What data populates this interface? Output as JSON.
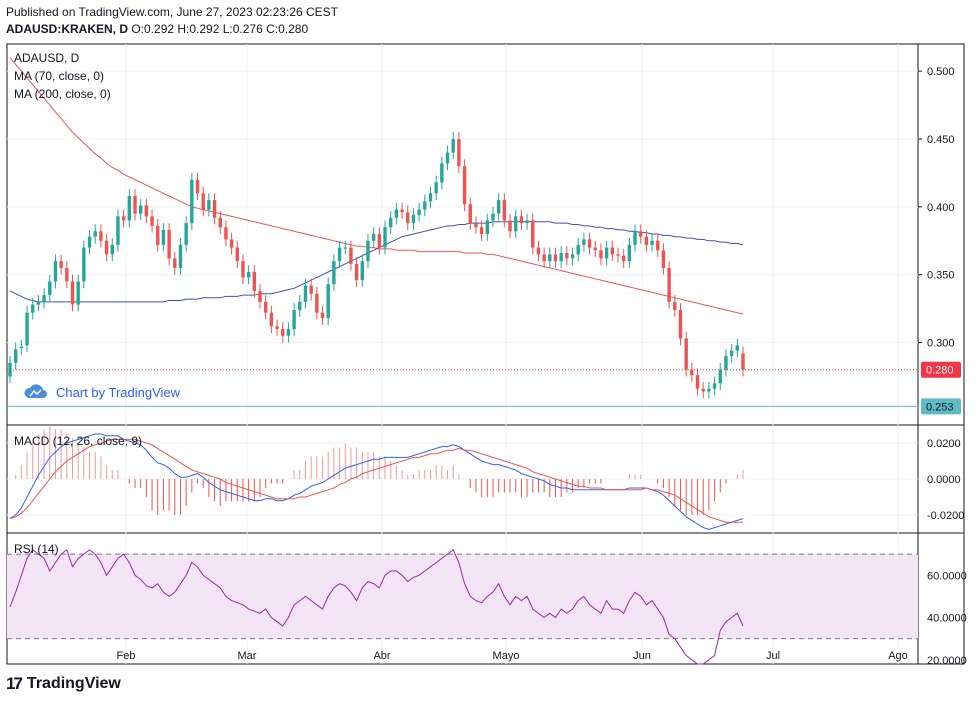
{
  "header": {
    "published": "Published on TradingView.com, June 27, 2023 02:23:26 CEST",
    "symbol": "ADAUSD:KRAKEN, D",
    "ohlc": "O:0.292 H:0.292 L:0.276 C:0.280"
  },
  "legends": {
    "main_title": "ADAUSD, D",
    "ma70": "MA (70, close, 0)",
    "ma200": "MA (200, close, 0)",
    "macd": "MACD (12, 26, close, 9)",
    "rsi": "RSI (14)"
  },
  "watermark": "Chart by TradingView",
  "footer": {
    "brand": "TradingView",
    "mark": "17"
  },
  "colors": {
    "up": "#26a69a",
    "down": "#ef5350",
    "ma70": "#ef5350",
    "ma200": "#3f51b5",
    "macd": "#2962ff",
    "signal": "#ef5350",
    "rsi": "#9c27b0",
    "rsi_band": "#f3e5f5",
    "current_price": "#f23645",
    "low_line": "#5dbbc4"
  },
  "chart_data": {
    "type": "candlestick",
    "x_tick_labels": [
      "Feb",
      "Mar",
      "Abr",
      "Mayo",
      "Jun",
      "Jul",
      "Ago"
    ],
    "price_axis": {
      "ticks": [
        "0.500",
        "0.450",
        "0.400",
        "0.350",
        "0.300"
      ],
      "ylim": [
        0.24,
        0.52
      ]
    },
    "current_price": "0.280",
    "low_price": "0.253",
    "candles_close": [
      0.285,
      0.295,
      0.297,
      0.322,
      0.328,
      0.33,
      0.335,
      0.345,
      0.36,
      0.355,
      0.345,
      0.328,
      0.345,
      0.37,
      0.378,
      0.382,
      0.375,
      0.365,
      0.372,
      0.393,
      0.39,
      0.408,
      0.395,
      0.401,
      0.393,
      0.386,
      0.372,
      0.383,
      0.362,
      0.355,
      0.372,
      0.388,
      0.42,
      0.41,
      0.398,
      0.405,
      0.392,
      0.385,
      0.376,
      0.37,
      0.36,
      0.348,
      0.352,
      0.338,
      0.33,
      0.322,
      0.312,
      0.31,
      0.305,
      0.31,
      0.324,
      0.33,
      0.342,
      0.336,
      0.322,
      0.318,
      0.343,
      0.36,
      0.37,
      0.37,
      0.358,
      0.346,
      0.36,
      0.375,
      0.38,
      0.37,
      0.385,
      0.392,
      0.398,
      0.396,
      0.388,
      0.394,
      0.398,
      0.404,
      0.41,
      0.418,
      0.432,
      0.44,
      0.45,
      0.43,
      0.402,
      0.388,
      0.385,
      0.38,
      0.39,
      0.395,
      0.405,
      0.39,
      0.382,
      0.393,
      0.388,
      0.39,
      0.37,
      0.365,
      0.36,
      0.365,
      0.36,
      0.366,
      0.362,
      0.365,
      0.372,
      0.376,
      0.37,
      0.368,
      0.362,
      0.37,
      0.365,
      0.364,
      0.36,
      0.372,
      0.382,
      0.378,
      0.372,
      0.375,
      0.368,
      0.355,
      0.33,
      0.324,
      0.303,
      0.28,
      0.276,
      0.266,
      0.264,
      0.266,
      0.27,
      0.28,
      0.29,
      0.294,
      0.298,
      0.28
    ],
    "candles_open": [
      0.275,
      0.285,
      0.296,
      0.298,
      0.322,
      0.328,
      0.33,
      0.335,
      0.345,
      0.36,
      0.355,
      0.345,
      0.328,
      0.345,
      0.37,
      0.378,
      0.382,
      0.375,
      0.365,
      0.372,
      0.393,
      0.39,
      0.408,
      0.395,
      0.401,
      0.393,
      0.386,
      0.372,
      0.383,
      0.362,
      0.355,
      0.372,
      0.388,
      0.42,
      0.41,
      0.398,
      0.405,
      0.392,
      0.385,
      0.376,
      0.37,
      0.36,
      0.348,
      0.352,
      0.338,
      0.33,
      0.322,
      0.312,
      0.31,
      0.305,
      0.31,
      0.324,
      0.33,
      0.342,
      0.336,
      0.322,
      0.318,
      0.343,
      0.36,
      0.37,
      0.37,
      0.358,
      0.346,
      0.36,
      0.375,
      0.38,
      0.37,
      0.385,
      0.392,
      0.398,
      0.396,
      0.388,
      0.394,
      0.398,
      0.404,
      0.41,
      0.418,
      0.432,
      0.44,
      0.45,
      0.43,
      0.402,
      0.388,
      0.385,
      0.38,
      0.39,
      0.395,
      0.405,
      0.39,
      0.382,
      0.393,
      0.388,
      0.39,
      0.37,
      0.365,
      0.36,
      0.365,
      0.36,
      0.366,
      0.362,
      0.365,
      0.372,
      0.376,
      0.37,
      0.368,
      0.362,
      0.37,
      0.365,
      0.364,
      0.36,
      0.372,
      0.382,
      0.378,
      0.372,
      0.375,
      0.368,
      0.355,
      0.33,
      0.324,
      0.303,
      0.28,
      0.276,
      0.266,
      0.264,
      0.266,
      0.27,
      0.28,
      0.29,
      0.294,
      0.292
    ],
    "ma70": [
      0.51,
      0.505,
      0.5,
      0.495,
      0.49,
      0.485,
      0.48,
      0.475,
      0.47,
      0.465,
      0.46,
      0.455,
      0.451,
      0.447,
      0.443,
      0.439,
      0.436,
      0.432,
      0.429,
      0.427,
      0.424,
      0.422,
      0.42,
      0.418,
      0.416,
      0.414,
      0.412,
      0.41,
      0.408,
      0.406,
      0.404,
      0.402,
      0.4,
      0.399,
      0.398,
      0.397,
      0.396,
      0.395,
      0.394,
      0.393,
      0.392,
      0.391,
      0.39,
      0.389,
      0.388,
      0.387,
      0.386,
      0.385,
      0.384,
      0.383,
      0.382,
      0.381,
      0.38,
      0.379,
      0.378,
      0.377,
      0.376,
      0.375,
      0.374,
      0.373,
      0.372,
      0.371,
      0.371,
      0.37,
      0.37,
      0.369,
      0.369,
      0.369,
      0.368,
      0.368,
      0.368,
      0.368,
      0.367,
      0.367,
      0.367,
      0.367,
      0.367,
      0.367,
      0.367,
      0.367,
      0.366,
      0.366,
      0.366,
      0.366,
      0.365,
      0.365,
      0.364,
      0.363,
      0.362,
      0.361,
      0.36,
      0.359,
      0.358,
      0.357,
      0.356,
      0.355,
      0.354,
      0.353,
      0.352,
      0.351,
      0.35,
      0.349,
      0.348,
      0.347,
      0.346,
      0.345,
      0.344,
      0.343,
      0.342,
      0.341,
      0.34,
      0.339,
      0.338,
      0.337,
      0.336,
      0.335,
      0.334,
      0.333,
      0.332,
      0.331,
      0.33,
      0.329,
      0.328,
      0.327,
      0.326,
      0.325,
      0.324,
      0.323,
      0.322,
      0.321
    ],
    "ma200": [
      0.338,
      0.336,
      0.334,
      0.332,
      0.331,
      0.33,
      0.33,
      0.33,
      0.33,
      0.33,
      0.33,
      0.33,
      0.33,
      0.33,
      0.33,
      0.33,
      0.33,
      0.33,
      0.33,
      0.33,
      0.33,
      0.33,
      0.33,
      0.33,
      0.33,
      0.33,
      0.33,
      0.33,
      0.331,
      0.331,
      0.331,
      0.332,
      0.332,
      0.332,
      0.333,
      0.333,
      0.333,
      0.333,
      0.334,
      0.334,
      0.334,
      0.335,
      0.335,
      0.335,
      0.336,
      0.336,
      0.336,
      0.337,
      0.338,
      0.339,
      0.34,
      0.342,
      0.344,
      0.346,
      0.348,
      0.35,
      0.352,
      0.354,
      0.356,
      0.358,
      0.36,
      0.362,
      0.364,
      0.366,
      0.368,
      0.37,
      0.372,
      0.374,
      0.376,
      0.378,
      0.379,
      0.38,
      0.381,
      0.382,
      0.383,
      0.384,
      0.385,
      0.386,
      0.386,
      0.387,
      0.387,
      0.388,
      0.388,
      0.388,
      0.388,
      0.389,
      0.389,
      0.389,
      0.389,
      0.389,
      0.389,
      0.389,
      0.389,
      0.389,
      0.389,
      0.389,
      0.388,
      0.388,
      0.388,
      0.387,
      0.387,
      0.386,
      0.386,
      0.385,
      0.385,
      0.384,
      0.384,
      0.383,
      0.383,
      0.382,
      0.382,
      0.381,
      0.381,
      0.38,
      0.38,
      0.379,
      0.379,
      0.378,
      0.378,
      0.377,
      0.377,
      0.376,
      0.376,
      0.375,
      0.375,
      0.374,
      0.374,
      0.373,
      0.373,
      0.372
    ],
    "macd_axis": {
      "ticks": [
        "0.0200",
        "0.0000",
        "-0.0200"
      ],
      "ylim": [
        -0.03,
        0.03
      ]
    },
    "macd": [
      -0.022,
      -0.02,
      -0.016,
      -0.01,
      -0.004,
      0.002,
      0.007,
      0.012,
      0.015,
      0.018,
      0.02,
      0.021,
      0.022,
      0.023,
      0.024,
      0.025,
      0.025,
      0.024,
      0.024,
      0.024,
      0.022,
      0.021,
      0.02,
      0.019,
      0.016,
      0.012,
      0.009,
      0.008,
      0.006,
      0.003,
      0.001,
      0.001,
      0.002,
      0.003,
      0.001,
      -0.002,
      -0.004,
      -0.006,
      -0.007,
      -0.008,
      -0.009,
      -0.01,
      -0.011,
      -0.012,
      -0.012,
      -0.011,
      -0.011,
      -0.012,
      -0.012,
      -0.011,
      -0.009,
      -0.008,
      -0.006,
      -0.004,
      -0.003,
      -0.002,
      0.0,
      0.002,
      0.004,
      0.006,
      0.007,
      0.008,
      0.009,
      0.01,
      0.011,
      0.011,
      0.012,
      0.012,
      0.012,
      0.012,
      0.012,
      0.013,
      0.014,
      0.015,
      0.016,
      0.017,
      0.018,
      0.018,
      0.019,
      0.018,
      0.016,
      0.014,
      0.012,
      0.01,
      0.009,
      0.008,
      0.008,
      0.007,
      0.006,
      0.005,
      0.003,
      0.002,
      0.001,
      0.0,
      -0.001,
      -0.003,
      -0.004,
      -0.005,
      -0.005,
      -0.006,
      -0.006,
      -0.006,
      -0.006,
      -0.006,
      -0.006,
      -0.006,
      -0.006,
      -0.006,
      -0.006,
      -0.005,
      -0.005,
      -0.005,
      -0.005,
      -0.006,
      -0.007,
      -0.009,
      -0.012,
      -0.015,
      -0.018,
      -0.021,
      -0.023,
      -0.025,
      -0.027,
      -0.028,
      -0.027,
      -0.026,
      -0.025,
      -0.024,
      -0.023,
      -0.022
    ],
    "signal": [
      -0.022,
      -0.021,
      -0.019,
      -0.016,
      -0.012,
      -0.008,
      -0.004,
      0.0,
      0.004,
      0.007,
      0.01,
      0.012,
      0.014,
      0.016,
      0.018,
      0.019,
      0.02,
      0.021,
      0.022,
      0.022,
      0.022,
      0.022,
      0.022,
      0.021,
      0.02,
      0.019,
      0.017,
      0.015,
      0.013,
      0.011,
      0.009,
      0.007,
      0.005,
      0.004,
      0.003,
      0.002,
      0.001,
      0.0,
      -0.002,
      -0.003,
      -0.004,
      -0.005,
      -0.006,
      -0.007,
      -0.008,
      -0.009,
      -0.01,
      -0.011,
      -0.011,
      -0.011,
      -0.011,
      -0.01,
      -0.01,
      -0.009,
      -0.008,
      -0.007,
      -0.006,
      -0.005,
      -0.003,
      -0.002,
      0.0,
      0.001,
      0.003,
      0.004,
      0.005,
      0.006,
      0.007,
      0.008,
      0.009,
      0.01,
      0.011,
      0.012,
      0.012,
      0.013,
      0.014,
      0.014,
      0.015,
      0.016,
      0.016,
      0.017,
      0.016,
      0.016,
      0.015,
      0.014,
      0.013,
      0.012,
      0.011,
      0.01,
      0.009,
      0.008,
      0.007,
      0.006,
      0.004,
      0.003,
      0.002,
      0.001,
      0.0,
      -0.001,
      -0.002,
      -0.003,
      -0.004,
      -0.004,
      -0.005,
      -0.005,
      -0.005,
      -0.006,
      -0.006,
      -0.006,
      -0.006,
      -0.006,
      -0.006,
      -0.006,
      -0.005,
      -0.006,
      -0.006,
      -0.007,
      -0.008,
      -0.009,
      -0.011,
      -0.013,
      -0.015,
      -0.017,
      -0.019,
      -0.021,
      -0.022,
      -0.023,
      -0.024,
      -0.024,
      -0.024,
      -0.024
    ],
    "rsi_axis": {
      "ticks": [
        "60.0000",
        "40.0000",
        "20.0000"
      ],
      "ylim": [
        18,
        80
      ],
      "band": [
        30,
        70
      ]
    },
    "rsi": [
      45,
      52,
      60,
      68,
      72,
      70,
      68,
      62,
      66,
      70,
      72,
      64,
      68,
      70,
      72,
      70,
      66,
      60,
      64,
      68,
      70,
      66,
      60,
      58,
      55,
      54,
      56,
      52,
      50,
      52,
      56,
      60,
      66,
      64,
      60,
      58,
      56,
      54,
      50,
      48,
      47,
      46,
      44,
      43,
      42,
      44,
      40,
      38,
      36,
      40,
      46,
      48,
      50,
      48,
      46,
      44,
      50,
      54,
      56,
      55,
      52,
      48,
      54,
      57,
      56,
      54,
      60,
      62,
      62,
      60,
      57,
      59,
      60,
      62,
      64,
      66,
      68,
      70,
      72,
      66,
      56,
      50,
      48,
      47,
      50,
      52,
      56,
      50,
      46,
      50,
      48,
      50,
      44,
      42,
      40,
      42,
      40,
      44,
      42,
      44,
      48,
      50,
      46,
      44,
      42,
      48,
      44,
      44,
      42,
      48,
      52,
      50,
      46,
      48,
      44,
      40,
      32,
      30,
      26,
      22,
      20,
      18,
      18,
      20,
      22,
      34,
      38,
      40,
      42,
      36
    ],
    "rsi_last_label": ""
  }
}
